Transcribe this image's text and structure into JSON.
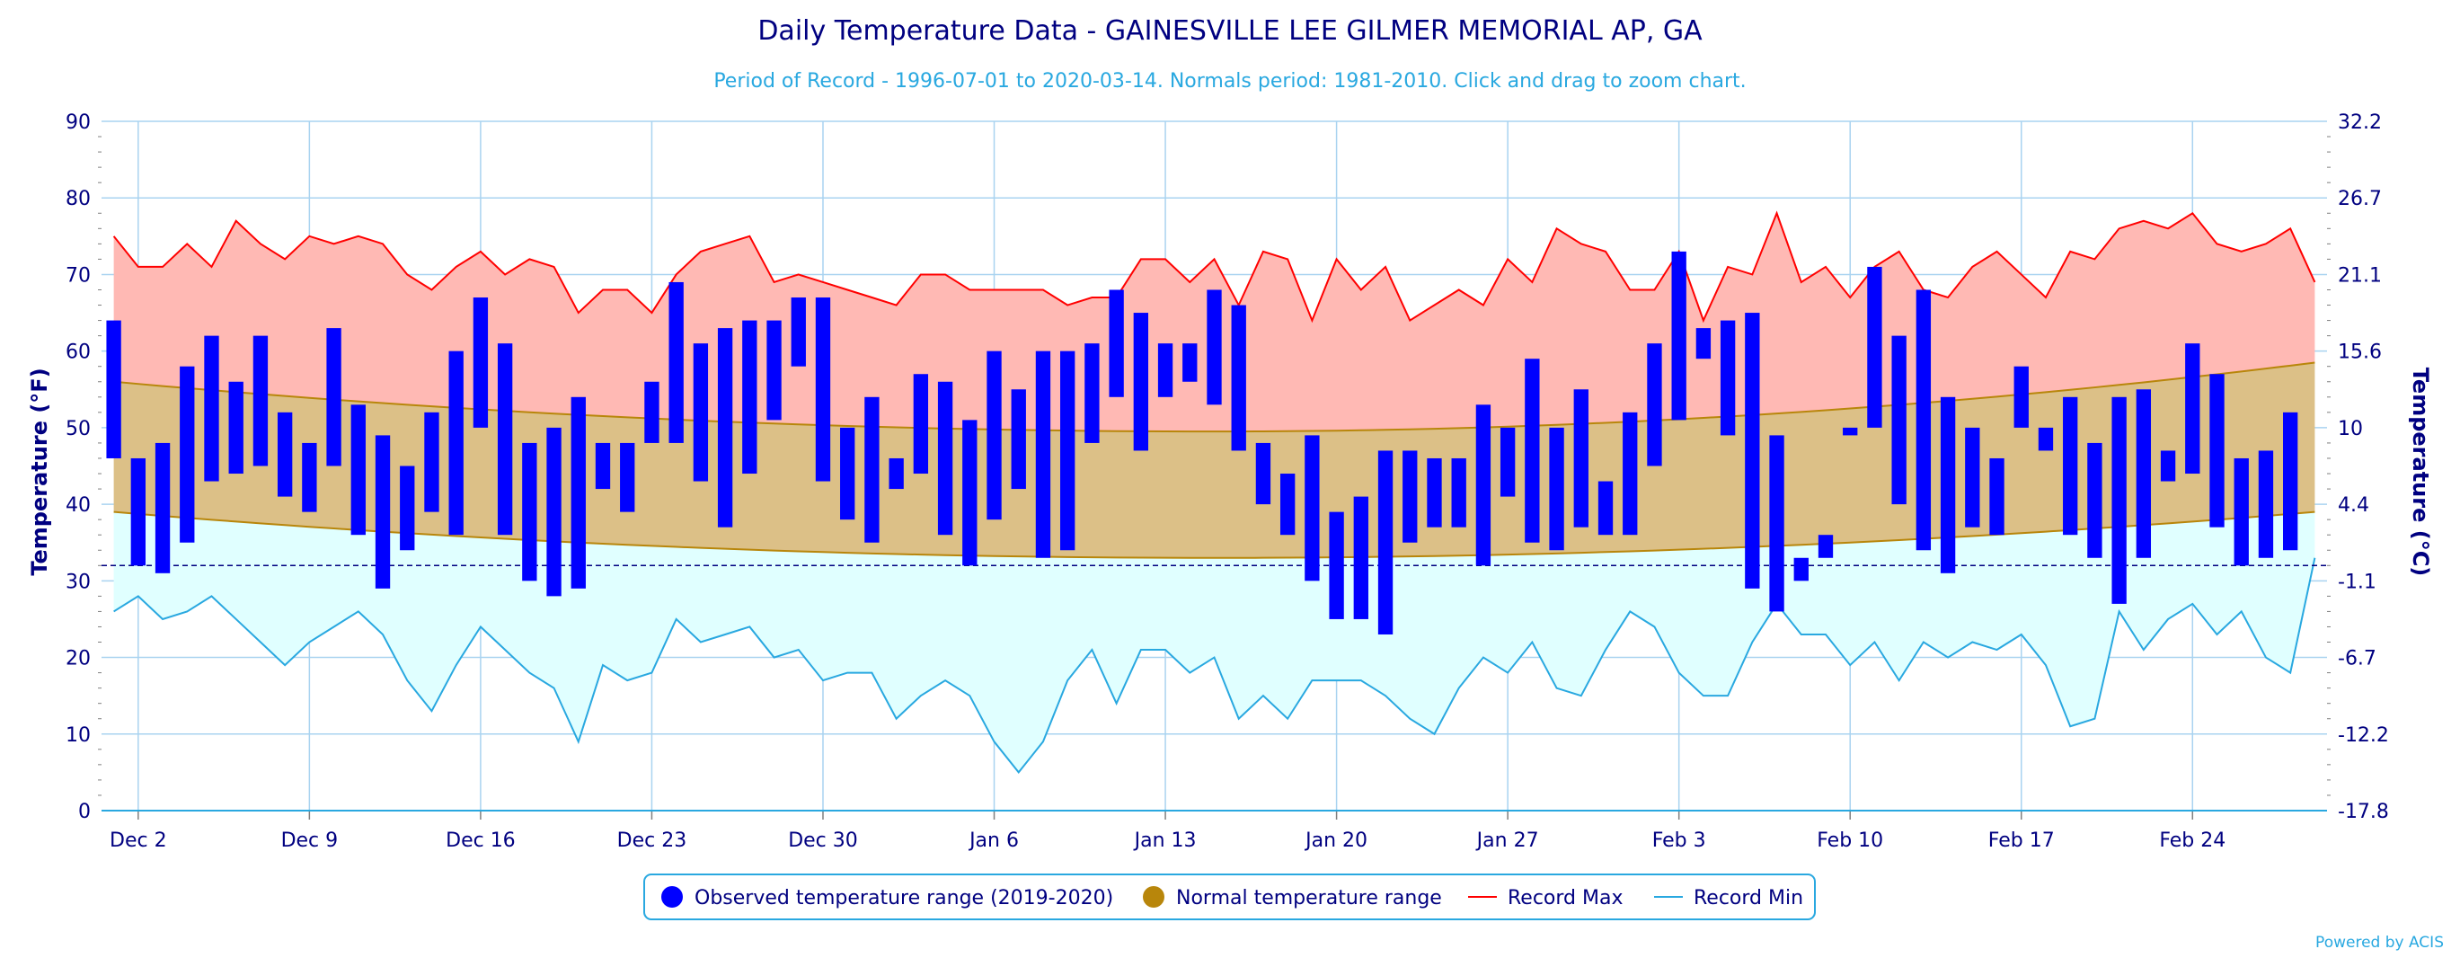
{
  "chart_data": {
    "type": "bar",
    "title": "Daily Temperature Data - GAINESVILLE LEE GILMER MEMORIAL AP, GA",
    "subtitle": "Period of Record - 1996-07-01 to 2020-03-14. Normals period: 1981-2010. Click and drag to zoom chart.",
    "ylabel": "Temperature (°F)",
    "y2label": "Temperature (°C)",
    "ylim": [
      0,
      90
    ],
    "yticks": [
      0,
      10,
      20,
      30,
      40,
      50,
      60,
      70,
      80,
      90
    ],
    "y2ticks": [
      "-17.8",
      "-12.2",
      "-6.7",
      "-1.1",
      "4.4",
      "10",
      "15.6",
      "21.1",
      "26.7",
      "32.2"
    ],
    "freezing_line": 32,
    "grid": true,
    "legend_position": "bottom-center",
    "xtick_labels": [
      "Dec 2",
      "Dec 9",
      "Dec 16",
      "Dec 23",
      "Dec 30",
      "Jan 6",
      "Jan 13",
      "Jan 20",
      "Jan 27",
      "Feb 3",
      "Feb 10",
      "Feb 17",
      "Feb 24"
    ],
    "xtick_index": [
      1,
      8,
      15,
      22,
      29,
      36,
      43,
      50,
      57,
      64,
      71,
      78,
      85
    ],
    "dates_start": "Dec 1",
    "observed": {
      "name": "Observed temperature range (2019-2020)",
      "color": "#0000ff",
      "low": [
        46,
        32,
        31,
        35,
        43,
        44,
        45,
        41,
        39,
        45,
        36,
        29,
        34,
        39,
        36,
        50,
        36,
        30,
        28,
        29,
        42,
        39,
        48,
        48,
        43,
        37,
        44,
        51,
        58,
        43,
        38,
        35,
        42,
        44,
        36,
        32,
        38,
        42,
        33,
        34,
        48,
        54,
        47,
        54,
        56,
        53,
        47,
        40,
        36,
        30,
        25,
        25,
        23,
        35,
        37,
        37,
        32,
        41,
        35,
        34,
        37,
        36,
        36,
        45,
        51,
        59,
        49,
        29,
        26,
        30,
        33,
        49,
        50,
        40,
        34,
        31,
        37,
        36,
        50,
        47,
        36,
        33,
        27,
        33,
        43,
        44,
        37,
        32,
        33,
        34
      ],
      "high": [
        64,
        46,
        48,
        58,
        62,
        56,
        62,
        52,
        48,
        63,
        53,
        49,
        45,
        52,
        60,
        67,
        61,
        48,
        50,
        54,
        48,
        48,
        56,
        69,
        61,
        63,
        64,
        64,
        67,
        67,
        50,
        54,
        46,
        57,
        56,
        51,
        60,
        55,
        60,
        60,
        61,
        68,
        65,
        61,
        61,
        68,
        66,
        48,
        44,
        49,
        39,
        41,
        47,
        47,
        46,
        46,
        53,
        50,
        59,
        50,
        55,
        43,
        52,
        61,
        73,
        63,
        64,
        65,
        49,
        33,
        36,
        50,
        71,
        62,
        68,
        54,
        50,
        46,
        58,
        50,
        54,
        48,
        54,
        55,
        47,
        61,
        57,
        46,
        47,
        52
      ]
    },
    "normal": {
      "name": "Normal temperature range",
      "color": "#b8860b",
      "min_start": 39,
      "min_mid": 33,
      "min_end": 39,
      "max_start": 56,
      "max_mid": 49.5,
      "max_end": 58.5
    },
    "record_max": {
      "name": "Record Max",
      "color": "#ff0000",
      "values": [
        75,
        71,
        71,
        74,
        71,
        77,
        74,
        72,
        75,
        74,
        75,
        74,
        70,
        68,
        71,
        73,
        70,
        72,
        71,
        65,
        68,
        68,
        65,
        70,
        73,
        74,
        75,
        69,
        70,
        69,
        68,
        67,
        66,
        70,
        70,
        68,
        68,
        68,
        68,
        66,
        67,
        67,
        72,
        72,
        69,
        72,
        66,
        73,
        72,
        64,
        72,
        68,
        71,
        64,
        66,
        68,
        66,
        72,
        69,
        76,
        74,
        73,
        68,
        68,
        73,
        64,
        71,
        70,
        78,
        69,
        71,
        67,
        71,
        73,
        68,
        67,
        71,
        73,
        70,
        67,
        73,
        72,
        76,
        77,
        76,
        78,
        74,
        73,
        74,
        76,
        69
      ]
    },
    "record_min": {
      "name": "Record Min",
      "color": "#29a8e0",
      "values": [
        26,
        28,
        25,
        26,
        28,
        25,
        22,
        19,
        22,
        24,
        26,
        23,
        17,
        13,
        19,
        24,
        21,
        18,
        16,
        9,
        19,
        17,
        18,
        25,
        22,
        23,
        24,
        20,
        21,
        17,
        18,
        18,
        12,
        15,
        17,
        15,
        9,
        5,
        9,
        17,
        21,
        14,
        21,
        21,
        18,
        20,
        12,
        15,
        12,
        17,
        17,
        17,
        15,
        12,
        10,
        16,
        20,
        18,
        22,
        16,
        15,
        21,
        26,
        24,
        18,
        15,
        15,
        22,
        27,
        23,
        23,
        19,
        22,
        17,
        22,
        20,
        22,
        21,
        23,
        19,
        11,
        12,
        26,
        21,
        25,
        27,
        23,
        26,
        20,
        18,
        33
      ]
    }
  },
  "credits": "Powered by ACIS"
}
